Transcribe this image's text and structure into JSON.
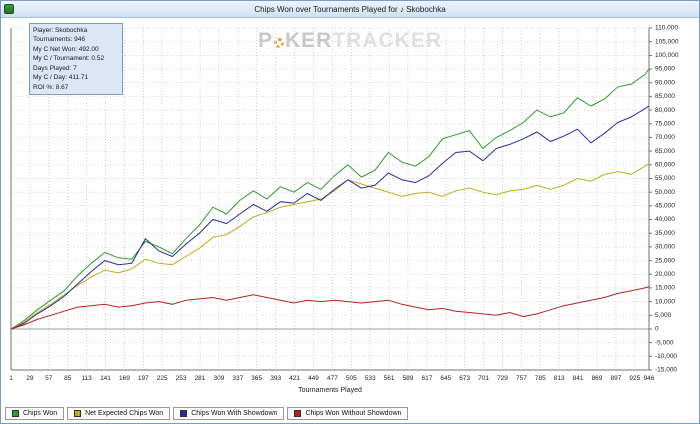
{
  "window": {
    "title": "Chips Won over Tournaments Played for ♪ Skobochka"
  },
  "stats_panel": {
    "lines": [
      "Player: Skobochka",
      "Tournaments: 946",
      "My C Net Won: 492.00",
      "My C / Tournament: 0.52",
      "Days Played: 7",
      "My C / Day: 411.71",
      "ROI %: 8.67"
    ]
  },
  "watermark": {
    "p": "P",
    "ker": "KER",
    "tracker": "TRACKER"
  },
  "chart_data": {
    "type": "line",
    "title": "Chips Won over Tournaments Played for ♪ Skobochka",
    "xlabel": "Tournaments Played",
    "ylabel": "",
    "grid": "dotted",
    "legend_position": "bottom",
    "ylim": [
      -15000,
      110000
    ],
    "y_tick_step": 5000,
    "x_ticks": [
      1,
      29,
      57,
      85,
      113,
      141,
      169,
      197,
      225,
      253,
      281,
      309,
      337,
      365,
      393,
      421,
      449,
      477,
      505,
      533,
      561,
      589,
      617,
      645,
      673,
      701,
      729,
      757,
      785,
      813,
      841,
      869,
      897,
      925,
      946
    ],
    "x": [
      1,
      20,
      40,
      60,
      80,
      100,
      120,
      140,
      160,
      180,
      200,
      220,
      240,
      260,
      280,
      300,
      320,
      340,
      360,
      380,
      400,
      420,
      440,
      460,
      480,
      500,
      520,
      540,
      560,
      580,
      600,
      620,
      640,
      660,
      680,
      700,
      720,
      740,
      760,
      780,
      800,
      820,
      840,
      860,
      880,
      900,
      920,
      940,
      946
    ],
    "series": [
      {
        "name": "Chips Won",
        "color": "#2e9b2e",
        "values": [
          0,
          3000,
          7000,
          10500,
          14000,
          19500,
          24000,
          28000,
          26000,
          25500,
          32000,
          30000,
          27500,
          33000,
          38000,
          44500,
          42000,
          47000,
          50500,
          47500,
          52000,
          50000,
          53500,
          51000,
          56000,
          60000,
          55500,
          58000,
          64500,
          61000,
          59500,
          63000,
          69500,
          71000,
          72500,
          66000,
          70000,
          72500,
          75500,
          80000,
          77500,
          79000,
          84500,
          81500,
          84000,
          88500,
          89500,
          93000,
          95000
        ]
      },
      {
        "name": "Net Expected Chips Won",
        "color": "#bcae1c",
        "values": [
          0,
          2500,
          6000,
          9000,
          12500,
          16000,
          19000,
          21500,
          20500,
          22000,
          25500,
          24000,
          23500,
          26500,
          29500,
          33500,
          34500,
          37500,
          41000,
          42500,
          44500,
          45500,
          46500,
          47500,
          50500,
          54500,
          53000,
          51500,
          50000,
          48500,
          49500,
          50000,
          48500,
          50500,
          51500,
          50000,
          49000,
          50500,
          51000,
          52500,
          51000,
          52500,
          55000,
          54000,
          56500,
          57500,
          56500,
          59500,
          60500
        ]
      },
      {
        "name": "Chips Won With Showdown",
        "color": "#2c2c9e",
        "values": [
          0,
          2000,
          5500,
          8500,
          12000,
          16500,
          21000,
          25000,
          23500,
          24000,
          33000,
          28500,
          26500,
          31000,
          35000,
          40000,
          38500,
          42000,
          45500,
          43000,
          46500,
          46000,
          49500,
          47000,
          51000,
          54500,
          51500,
          52500,
          57000,
          54500,
          53500,
          56000,
          60500,
          64500,
          65000,
          61500,
          66000,
          67500,
          69500,
          72000,
          68500,
          70500,
          73000,
          68000,
          71500,
          75500,
          77500,
          80500,
          81500
        ]
      },
      {
        "name": "Chips Won Without Showdown",
        "color": "#b22424",
        "values": [
          0,
          1500,
          3500,
          5000,
          6500,
          8000,
          8500,
          9000,
          8000,
          8500,
          9500,
          10000,
          9000,
          10500,
          11000,
          11500,
          10500,
          11500,
          12500,
          11500,
          10500,
          9500,
          10500,
          10000,
          10500,
          10000,
          9500,
          10000,
          10500,
          9000,
          8000,
          7000,
          7500,
          6500,
          6000,
          5500,
          5000,
          6000,
          4500,
          5500,
          7000,
          8500,
          9500,
          10500,
          11500,
          13000,
          14000,
          15000,
          15500
        ]
      }
    ]
  }
}
